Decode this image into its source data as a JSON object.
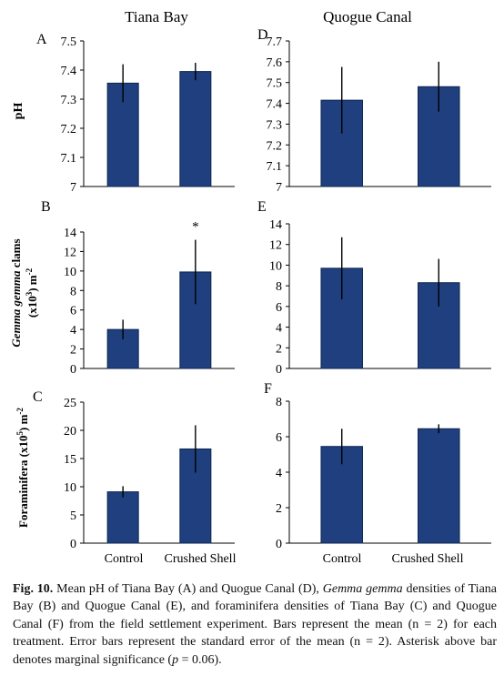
{
  "figure": {
    "columns": [
      "Tiana Bay",
      "Quogue Canal"
    ],
    "categories": [
      "Control",
      "Crushed Shell"
    ],
    "bar_color": "#1f3f7e",
    "row_labels": {
      "pH": "pH",
      "gemma_italic": "Gemma gemma",
      "gemma_rest": " clams",
      "gemma_unit_a": "(x10",
      "gemma_unit_exp": "3",
      "gemma_unit_b": ") m",
      "gemma_unit_exp2": "-2",
      "foram_a": "Foraminifera (x10",
      "foram_exp": "5",
      "foram_b": ") m",
      "foram_exp2": "-2"
    },
    "asterisk": "*"
  },
  "chart_data": [
    {
      "panel": "A",
      "type": "bar",
      "categories": [
        "Control",
        "Crushed Shell"
      ],
      "values": [
        7.355,
        7.395
      ],
      "error": [
        0.065,
        0.03
      ],
      "ylim": [
        7,
        7.5
      ],
      "yticks": [
        "7",
        "7.1",
        "7.2",
        "7.3",
        "7.4",
        "7.5"
      ],
      "title": "Tiana Bay",
      "ylabel": "pH"
    },
    {
      "panel": "B",
      "type": "bar",
      "categories": [
        "Control",
        "Crushed Shell"
      ],
      "values": [
        4.0,
        9.9
      ],
      "error": [
        1.0,
        3.3
      ],
      "ylim": [
        0,
        14
      ],
      "yticks": [
        "0",
        "2",
        "4",
        "6",
        "8",
        "10",
        "12",
        "14"
      ],
      "annotation": "*"
    },
    {
      "panel": "C",
      "type": "bar",
      "categories": [
        "Control",
        "Crushed Shell"
      ],
      "values": [
        9.1,
        16.7
      ],
      "error": [
        1.0,
        4.2
      ],
      "ylim": [
        0,
        25
      ],
      "yticks": [
        "0",
        "5",
        "10",
        "15",
        "20",
        "25"
      ]
    },
    {
      "panel": "D",
      "type": "bar",
      "categories": [
        "Control",
        "Crushed Shell"
      ],
      "values": [
        7.415,
        7.48
      ],
      "error": [
        0.16,
        0.12
      ],
      "ylim": [
        7,
        7.7
      ],
      "yticks": [
        "7",
        "7.1",
        "7.2",
        "7.3",
        "7.4",
        "7.5",
        "7.6",
        "7.7"
      ],
      "title": "Quogue Canal"
    },
    {
      "panel": "E",
      "type": "bar",
      "categories": [
        "Control",
        "Crushed Shell"
      ],
      "values": [
        9.7,
        8.3
      ],
      "error": [
        3.0,
        2.3
      ],
      "ylim": [
        0,
        14
      ],
      "yticks": [
        "0",
        "2",
        "4",
        "6",
        "8",
        "10",
        "12",
        "14"
      ]
    },
    {
      "panel": "F",
      "type": "bar",
      "categories": [
        "Control",
        "Crushed Shell"
      ],
      "values": [
        5.45,
        6.45
      ],
      "error": [
        1.0,
        0.25
      ],
      "ylim": [
        0,
        8
      ],
      "yticks": [
        "0",
        "2",
        "4",
        "6",
        "8"
      ]
    }
  ],
  "caption": {
    "fig_label": "Fig. 10.",
    "t1": " Mean pH of Tiana Bay (A) and Quogue Canal (D), ",
    "italic1": "Gemma gemma",
    "t2": " densities of Tiana Bay (B) and Quogue Canal (E), and foraminifera densities of Tiana Bay (C) and Quogue Canal (F) from the field settlement experiment. Bars represent the mean (n = 2) for each treatment. Error bars represent the standard error of the mean (n = 2). Asterisk above bar denotes marginal significance (",
    "italic2": "p",
    "t3": " = 0.06)."
  }
}
